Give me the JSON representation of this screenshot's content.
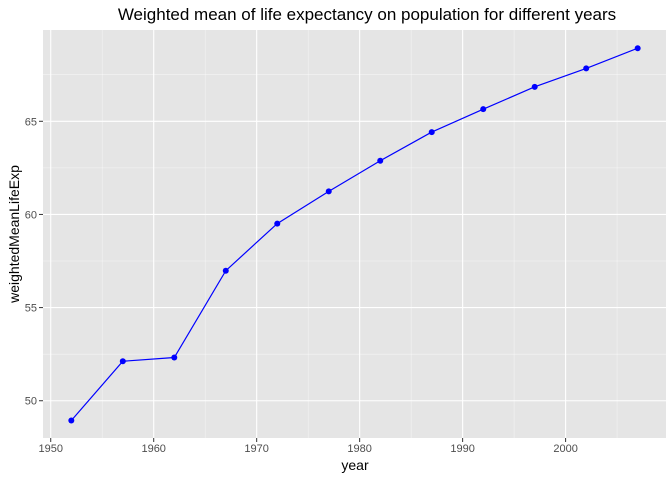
{
  "chart_data": {
    "type": "line",
    "title": "Weighted mean of life expectancy on population for different years",
    "xlabel": "year",
    "ylabel": "weightedMeanLifeExp",
    "xlim": [
      1949.25,
      2009.75
    ],
    "ylim": [
      48.0,
      69.9
    ],
    "x_ticks": [
      1950,
      1960,
      1970,
      1980,
      1990,
      2000
    ],
    "x_tick_labels": [
      "1950",
      "1960",
      "1970",
      "1980",
      "1990",
      "2000"
    ],
    "y_ticks": [
      50,
      55,
      60,
      65
    ],
    "y_tick_labels": [
      "50",
      "55",
      "60",
      "65"
    ],
    "grid": true,
    "series": [
      {
        "name": "weightedMeanLifeExp",
        "color": "#0000ff",
        "x": [
          1952,
          1957,
          1962,
          1967,
          1972,
          1977,
          1982,
          1987,
          1992,
          1997,
          2002,
          2007
        ],
        "values": [
          48.94,
          52.12,
          52.32,
          56.98,
          59.51,
          61.24,
          62.88,
          64.42,
          65.65,
          66.85,
          67.84,
          68.92
        ]
      }
    ]
  },
  "colors": {
    "panel_background": "#e5e5e5",
    "grid_major": "#ffffff",
    "line": "#0000ff",
    "point": "#0000ff",
    "tick": "#333333"
  }
}
